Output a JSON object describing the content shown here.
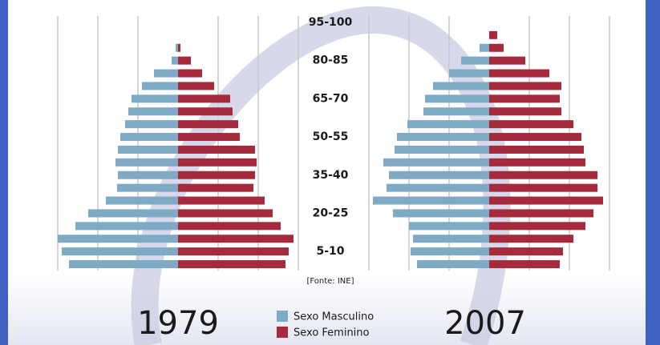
{
  "chart_data": {
    "type": "pyramid",
    "categories": [
      null,
      "5-10",
      null,
      null,
      "20-25",
      null,
      null,
      "35-40",
      null,
      null,
      "50-55",
      null,
      null,
      "65-70",
      null,
      null,
      "80-85",
      null,
      null,
      "95-100"
    ],
    "panels": [
      "1979",
      "2007"
    ],
    "series": [
      {
        "name": "Sexo Masculino",
        "color": "#7eaac6",
        "values": [
          [
            136,
            145,
            150,
            128,
            112,
            90,
            76,
            75,
            78,
            75,
            72,
            66,
            62,
            58,
            45,
            30,
            8,
            3,
            0,
            0
          ],
          [
            90,
            98,
            95,
            100,
            120,
            145,
            128,
            125,
            132,
            118,
            115,
            102,
            82,
            80,
            70,
            50,
            35,
            12,
            0,
            0
          ]
        ]
      },
      {
        "name": "Sexo Feminino",
        "color": "#a62a3c",
        "values": [
          [
            134,
            138,
            144,
            128,
            118,
            108,
            94,
            96,
            98,
            96,
            77,
            75,
            68,
            65,
            45,
            30,
            16,
            3,
            0,
            0
          ],
          [
            88,
            92,
            105,
            120,
            130,
            142,
            135,
            135,
            120,
            118,
            115,
            105,
            90,
            88,
            90,
            75,
            45,
            18,
            10,
            0
          ]
        ]
      }
    ],
    "xlim": [
      0,
      150
    ],
    "xticks": [
      50,
      100,
      150
    ],
    "grid": true,
    "source": "[Fonte: INE]"
  }
}
